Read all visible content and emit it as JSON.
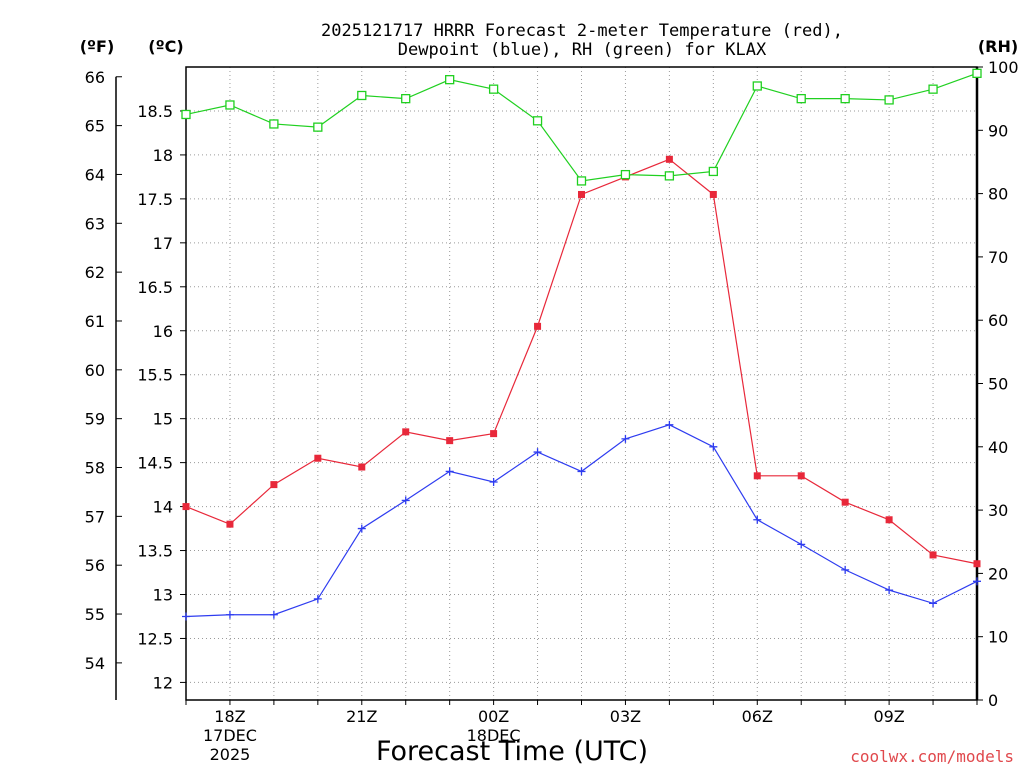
{
  "chart_data": {
    "type": "line",
    "title_line1": "2025121717 HRRR Forecast 2-meter Temperature (red),",
    "title_line2": "Dewpoint (blue), RH (green) for KLAX",
    "xlabel": "Forecast Time (UTC)",
    "watermark": "coolwx.com/models",
    "unit_f": "(ºF)",
    "unit_c": "(ºC)",
    "unit_rh": "(RH)",
    "x": [
      "17Z",
      "18Z",
      "19Z",
      "20Z",
      "21Z",
      "22Z",
      "23Z",
      "00Z",
      "01Z",
      "02Z",
      "03Z",
      "04Z",
      "05Z",
      "06Z",
      "07Z",
      "08Z",
      "09Z",
      "10Z",
      "11Z"
    ],
    "xticks": [
      {
        "index": 1,
        "lines": [
          "18Z",
          "17DEC",
          "2025"
        ]
      },
      {
        "index": 4,
        "lines": [
          "21Z"
        ]
      },
      {
        "index": 7,
        "lines": [
          "00Z",
          "18DEC"
        ]
      },
      {
        "index": 10,
        "lines": [
          "03Z"
        ]
      },
      {
        "index": 13,
        "lines": [
          "06Z"
        ]
      },
      {
        "index": 16,
        "lines": [
          "09Z"
        ]
      }
    ],
    "series": [
      {
        "name": "Temperature",
        "color": "#e8283a",
        "axis": "celsius",
        "marker": "filled-square",
        "values": [
          14.0,
          13.8,
          14.25,
          14.55,
          14.45,
          14.85,
          14.75,
          14.83,
          16.05,
          17.55,
          17.75,
          17.95,
          17.55,
          14.35,
          14.35,
          14.05,
          13.85,
          13.45,
          13.35
        ]
      },
      {
        "name": "Dewpoint",
        "color": "#2e3cf0",
        "axis": "celsius",
        "marker": "plus",
        "values": [
          12.75,
          12.77,
          12.77,
          12.95,
          13.75,
          14.07,
          14.4,
          14.28,
          14.62,
          14.4,
          14.77,
          14.93,
          14.68,
          13.85,
          13.57,
          13.28,
          13.05,
          12.9,
          13.15
        ]
      },
      {
        "name": "RH",
        "color": "#20d020",
        "axis": "rh",
        "marker": "open-square",
        "values": [
          92.5,
          94,
          91,
          90.5,
          95.5,
          95,
          98,
          96.5,
          91.5,
          82,
          83,
          82.8,
          83.5,
          97,
          95,
          95,
          94.8,
          96.5,
          99
        ]
      }
    ],
    "y_celsius": {
      "ticks": [
        12,
        12.5,
        13,
        13.5,
        14,
        14.5,
        15,
        15.5,
        16,
        16.5,
        17,
        17.5,
        18,
        18.5
      ],
      "ylim": [
        11.8,
        19.0
      ]
    },
    "y_fahrenheit": {
      "ticks": [
        54,
        55,
        56,
        57,
        58,
        59,
        60,
        61,
        62,
        63,
        64,
        65,
        66
      ]
    },
    "y_rh": {
      "ticks": [
        0,
        10,
        20,
        30,
        40,
        50,
        60,
        70,
        80,
        90,
        100
      ],
      "ylim": [
        0,
        100
      ]
    },
    "grid": true,
    "legend": "none"
  }
}
